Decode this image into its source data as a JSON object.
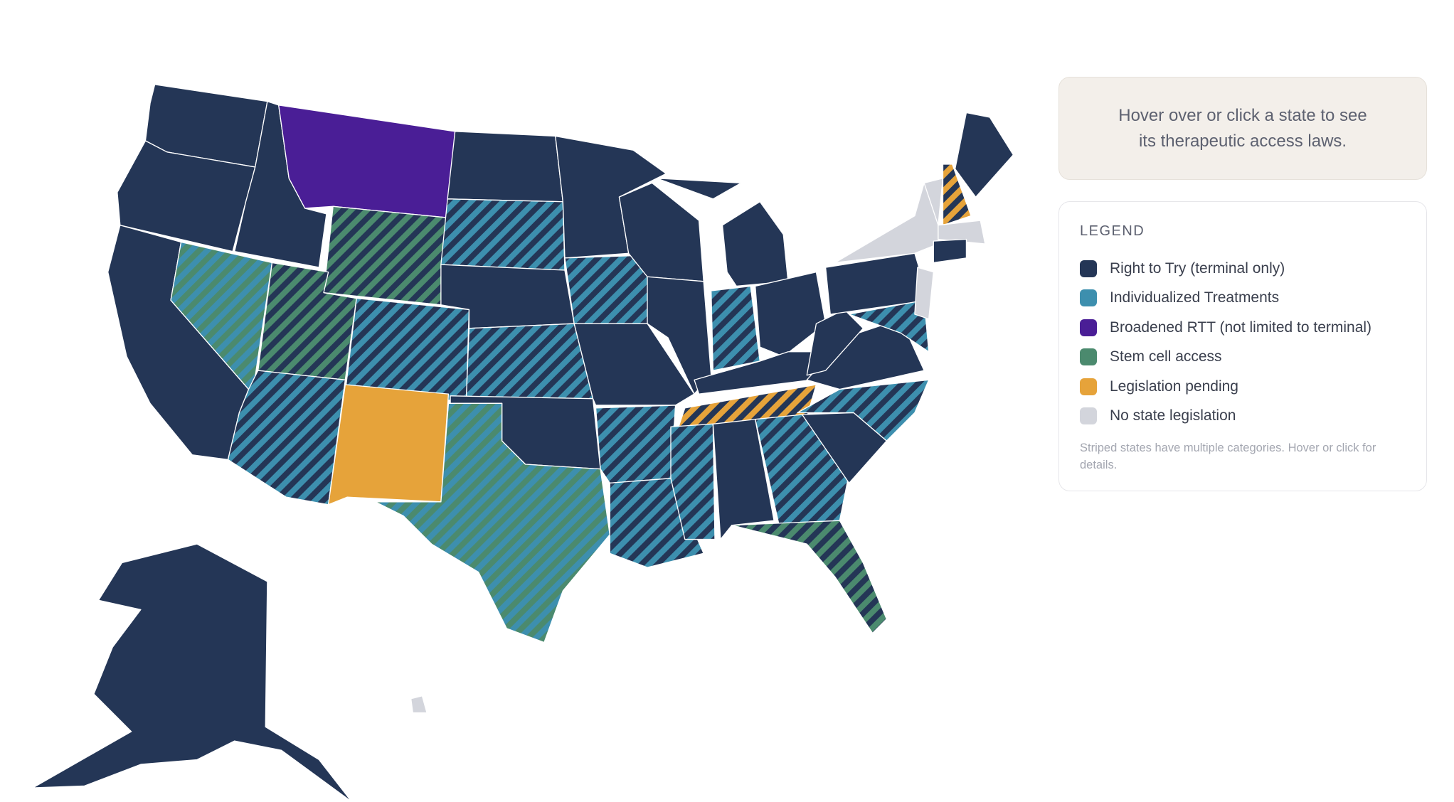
{
  "info": {
    "text": "Hover over or click a state to see its therapeutic access laws."
  },
  "legend": {
    "title": "LEGEND",
    "items": [
      {
        "label": "Right to Try (terminal only)",
        "color": "#243656"
      },
      {
        "label": "Individualized Treatments",
        "color": "#3d8fae"
      },
      {
        "label": "Broadened RTT (not limited to terminal)",
        "color": "#4a1e96"
      },
      {
        "label": "Stem cell access",
        "color": "#4b8a6e"
      },
      {
        "label": "Legislation pending",
        "color": "#e6a33a"
      },
      {
        "label": "No state legislation",
        "color": "#d3d5dc"
      }
    ],
    "note": "Striped states have multiple categories. Hover or click for details."
  }
}
